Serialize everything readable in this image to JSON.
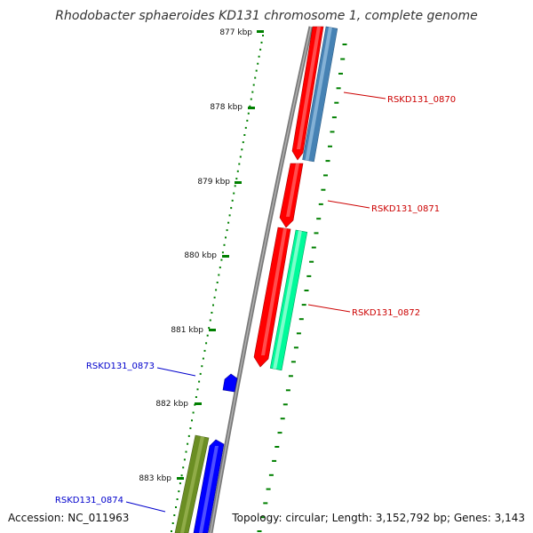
{
  "title": "Rhodobacter sphaeroides KD131 chromosome 1, complete genome",
  "accession": "Accession: NC_011963",
  "topology": "Topology: circular; Length: 3,152,792 bp; Genes: 3,143",
  "ticks": [
    {
      "label": "877 kbp"
    },
    {
      "label": "878 kbp"
    },
    {
      "label": "879 kbp"
    },
    {
      "label": "880 kbp"
    },
    {
      "label": "881 kbp"
    },
    {
      "label": "882 kbp"
    },
    {
      "label": "883 kbp"
    }
  ],
  "genes": [
    {
      "label": "RSKD131_0870",
      "strand": "+",
      "color": "#cc0000"
    },
    {
      "label": "RSKD131_0871",
      "strand": "+",
      "color": "#cc0000"
    },
    {
      "label": "RSKD131_0872",
      "strand": "+",
      "color": "#cc0000"
    },
    {
      "label": "RSKD131_0873",
      "strand": "-",
      "color": "#0000cc"
    },
    {
      "label": "RSKD131_0874",
      "strand": "-",
      "color": "#0000cc"
    }
  ],
  "colors": {
    "red_gene": "#ff0000",
    "steelblue_gene": "#4682b4",
    "aqua_gene": "#00fa9a",
    "blue_gene": "#0000ff",
    "olive_gene": "#6b8e23",
    "tick_mark": "#008000",
    "backbone": "#808080"
  }
}
